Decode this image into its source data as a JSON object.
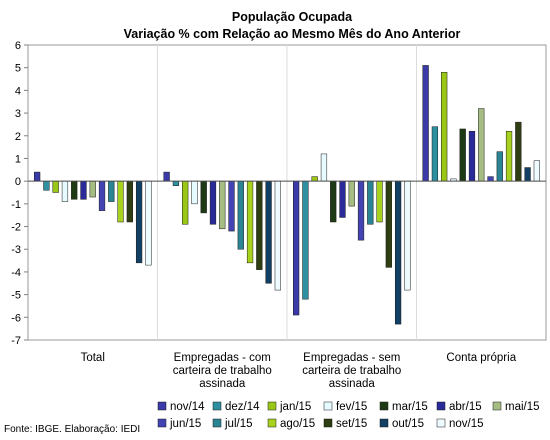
{
  "chart_data": {
    "type": "bar",
    "title": "População Ocupada",
    "subtitle": "Variação % com Relação ao Mesmo Mês do Ano Anterior",
    "xlabel": "",
    "ylabel": "",
    "ylim": [
      -7,
      6
    ],
    "yticks": [
      -7,
      -6,
      -5,
      -4,
      -3,
      -2,
      -1,
      0,
      1,
      2,
      3,
      4,
      5,
      6
    ],
    "categories": [
      [
        "Total"
      ],
      [
        "Empregadas - com",
        "carteira de trabalho",
        "assinada"
      ],
      [
        "Empregadas - sem",
        "carteira de trabalho",
        "assinada"
      ],
      [
        "Conta própria"
      ]
    ],
    "series": [
      {
        "name": "nov/14",
        "color": "#3A3AA8",
        "values": [
          0.4,
          0.4,
          -5.9,
          5.1
        ]
      },
      {
        "name": "dez/14",
        "color": "#2E8FA0",
        "values": [
          -0.4,
          -0.2,
          -5.2,
          2.4
        ]
      },
      {
        "name": "jan/15",
        "color": "#9AC715",
        "values": [
          -0.5,
          -1.9,
          0.2,
          4.8
        ]
      },
      {
        "name": "fev/15",
        "color": "#E6FBFF",
        "values": [
          -0.9,
          -1.0,
          1.2,
          0.1
        ]
      },
      {
        "name": "mar/15",
        "color": "#1E3A14",
        "values": [
          -0.8,
          -1.4,
          -1.8,
          2.3
        ]
      },
      {
        "name": "abr/15",
        "color": "#2A2A9A",
        "values": [
          -0.8,
          -1.9,
          -1.6,
          2.2
        ]
      },
      {
        "name": "mai/15",
        "color": "#A5BC82",
        "values": [
          -0.7,
          -2.1,
          -1.1,
          3.2
        ]
      },
      {
        "name": "jun/15",
        "color": "#4343B4",
        "values": [
          -1.3,
          -2.2,
          -2.6,
          0.2
        ]
      },
      {
        "name": "jul/15",
        "color": "#2A8494",
        "values": [
          -0.9,
          -3.0,
          -1.9,
          1.3
        ]
      },
      {
        "name": "ago/15",
        "color": "#A7D21D",
        "values": [
          -1.8,
          -3.6,
          -1.8,
          2.2
        ]
      },
      {
        "name": "set/15",
        "color": "#2F3D12",
        "values": [
          -1.8,
          -3.9,
          -3.8,
          2.6
        ]
      },
      {
        "name": "out/15",
        "color": "#123F64",
        "values": [
          -3.6,
          -4.5,
          -6.3,
          0.6
        ]
      },
      {
        "name": "nov/15",
        "color": "#EEFBFF",
        "values": [
          -3.7,
          -4.8,
          -4.8,
          0.9
        ]
      }
    ]
  },
  "footer": {
    "source": "Fonte: IBGE. Elaboração: IEDI"
  }
}
